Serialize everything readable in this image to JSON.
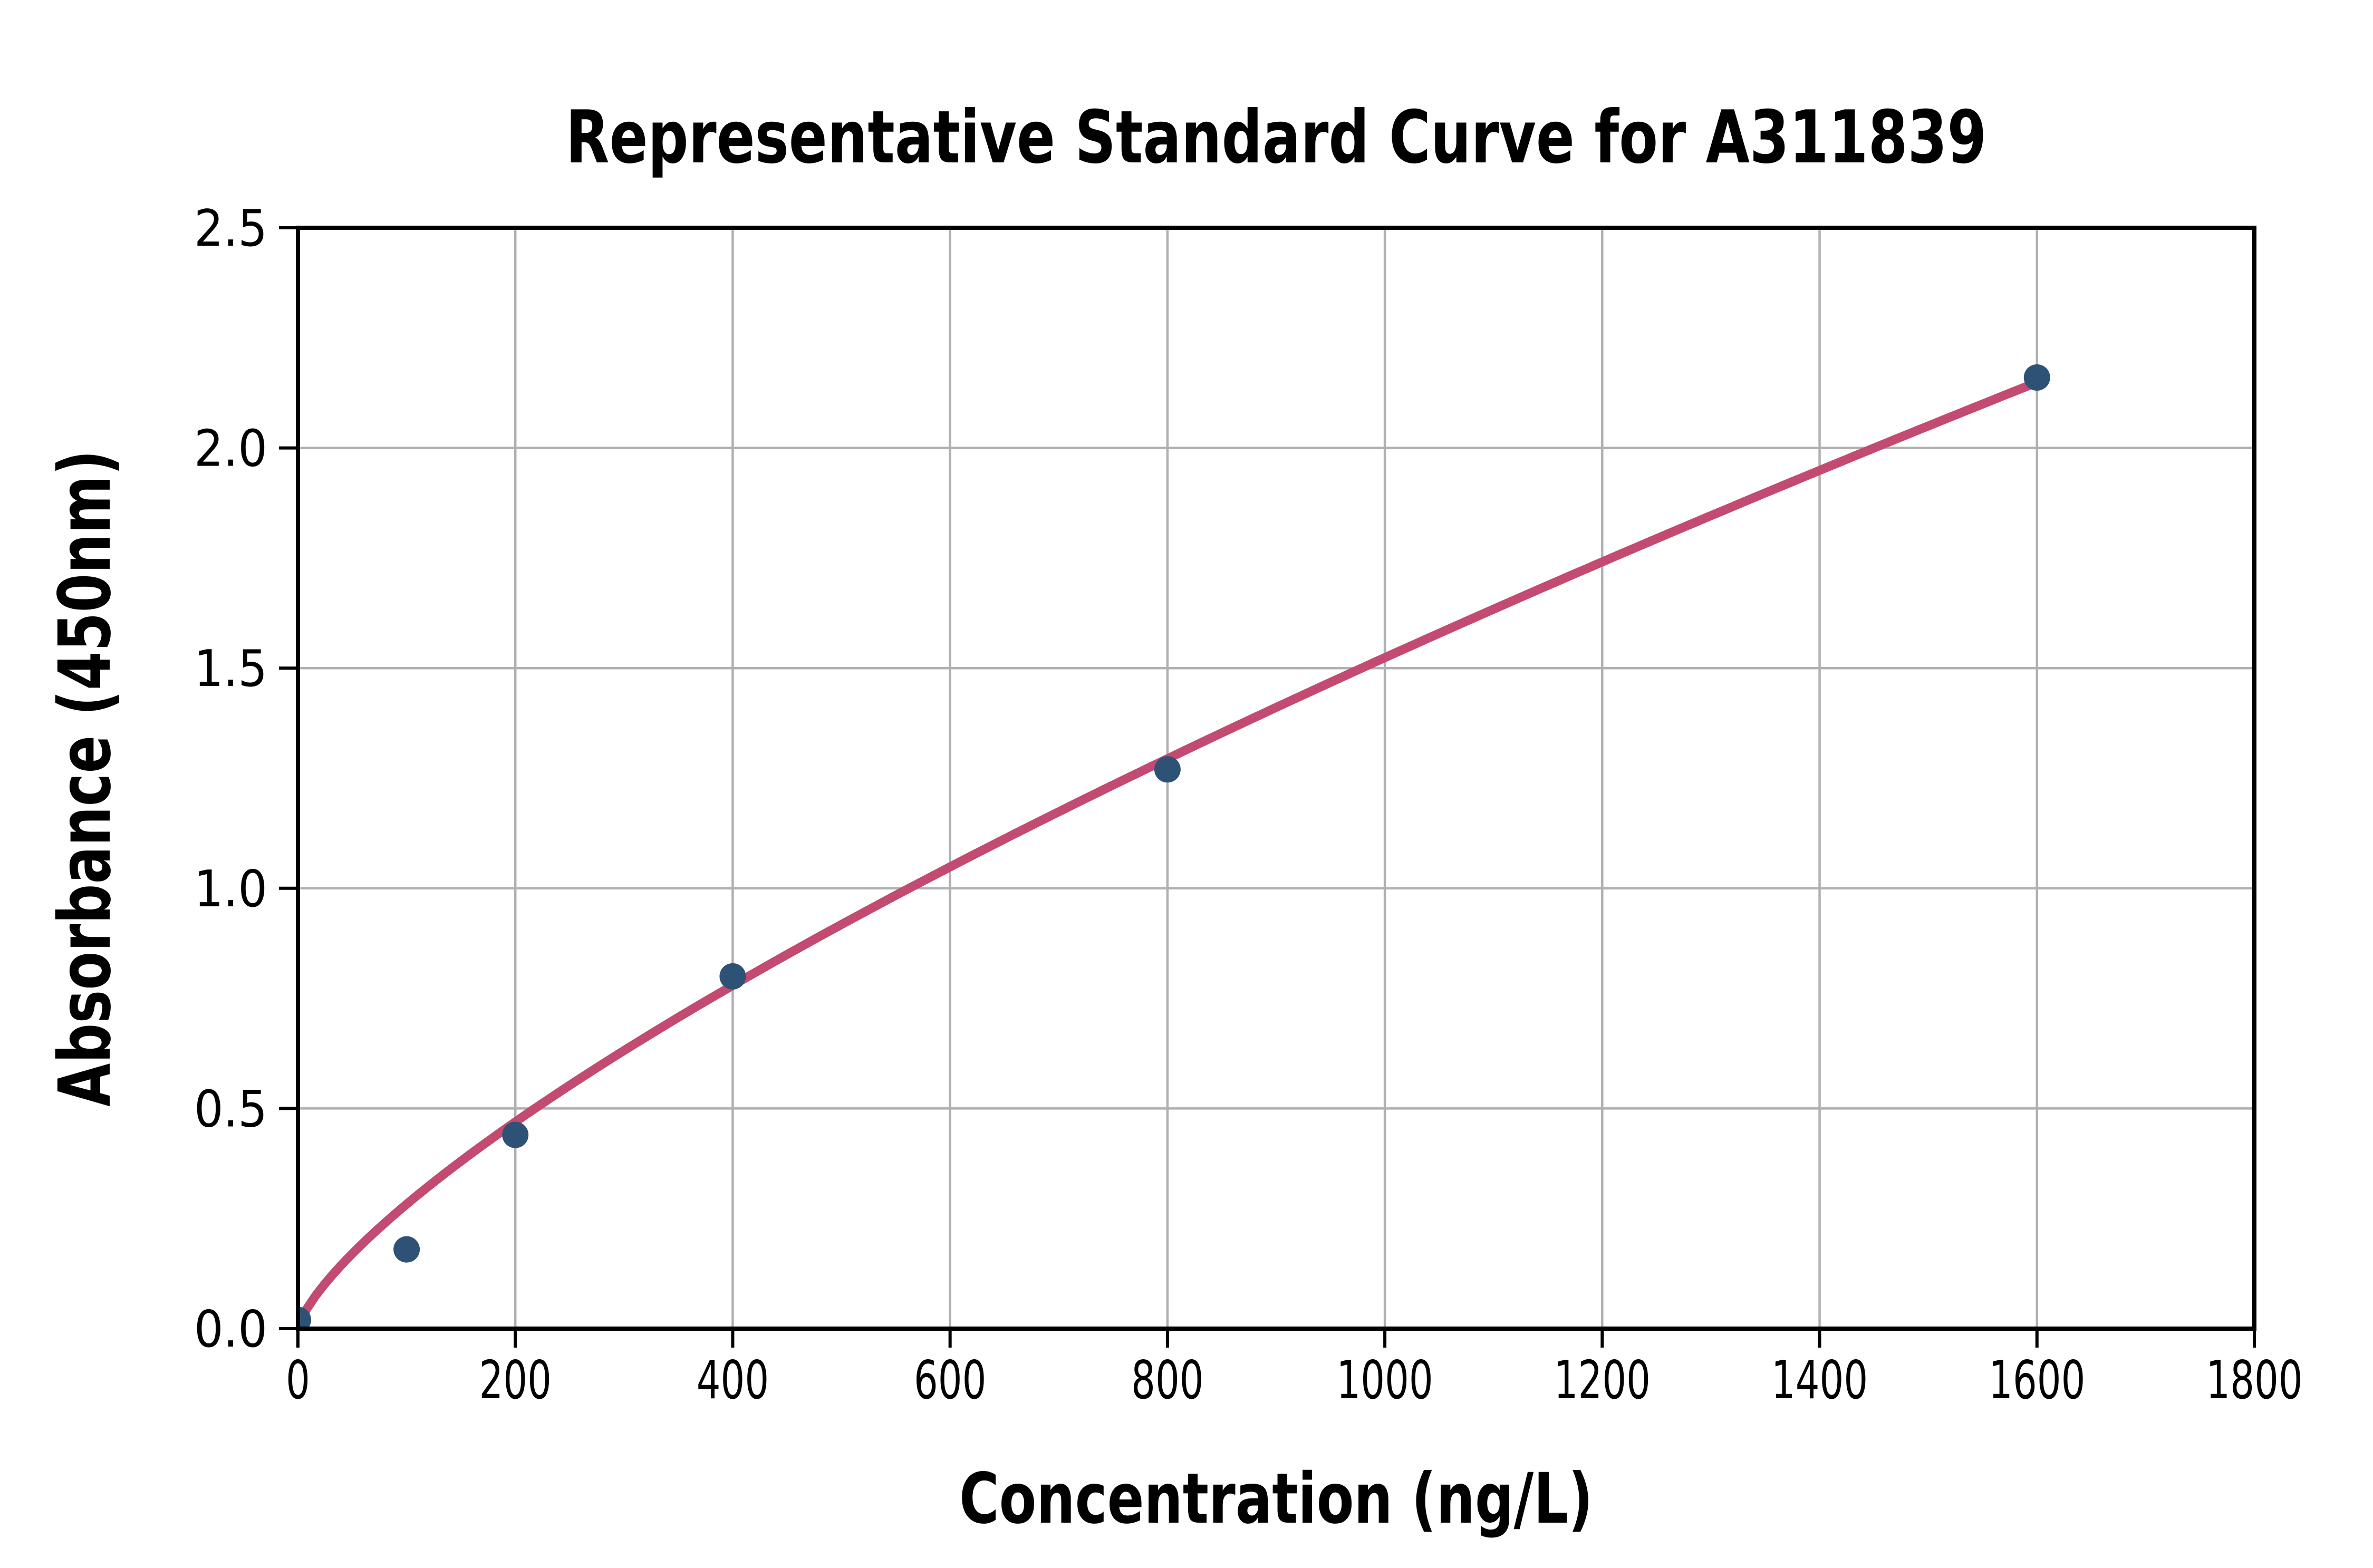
{
  "chart_data": {
    "type": "scatter",
    "title": "Representative Standard Curve for A311839",
    "xlabel": "Concentration (ng/L)",
    "ylabel": "Absorbance (450nm)",
    "xlim": [
      0,
      1800
    ],
    "ylim": [
      0,
      2.5
    ],
    "xticks": [
      0,
      200,
      400,
      600,
      800,
      1000,
      1200,
      1400,
      1600,
      1800
    ],
    "xtick_labels": [
      "0",
      "200",
      "400",
      "600",
      "800",
      "1000",
      "1200",
      "1400",
      "1600",
      "1800"
    ],
    "yticks": [
      0,
      0.5,
      1.0,
      1.5,
      2.0,
      2.5
    ],
    "ytick_labels": [
      "0.0",
      "0.5",
      "1.0",
      "1.5",
      "2.0",
      "2.5"
    ],
    "grid": true,
    "legend": "none",
    "series": [
      {
        "name": "standard-points",
        "type": "scatter",
        "marker": "circle",
        "color": "#2e5275",
        "x": [
          0,
          100,
          200,
          400,
          800,
          1600
        ],
        "y": [
          0.02,
          0.18,
          0.44,
          0.8,
          1.27,
          2.16
        ]
      },
      {
        "name": "fitted-curve",
        "type": "line",
        "color": "#c34a70",
        "fit": "power",
        "a": 0.00973,
        "b": 0.7316,
        "x_start": 0,
        "x_end": 1600
      }
    ],
    "styles": {
      "grid_color": "#b0b0b0",
      "spine_color": "#000000",
      "text_color": "#000000",
      "background": "#ffffff"
    }
  }
}
